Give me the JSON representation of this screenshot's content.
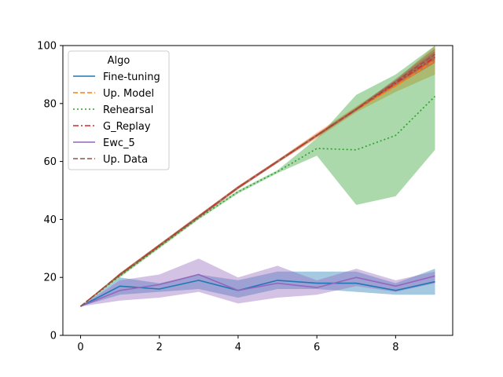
{
  "chart_data": {
    "type": "line",
    "title": "",
    "xlabel": "",
    "ylabel": "",
    "xlim": [
      -0.45,
      9.45
    ],
    "ylim": [
      0,
      100
    ],
    "x": [
      0,
      1,
      2,
      3,
      4,
      5,
      6,
      7,
      8,
      9
    ],
    "xticks": [
      0,
      2,
      4,
      6,
      8
    ],
    "yticks": [
      0,
      20,
      40,
      60,
      80,
      100
    ],
    "grid": false,
    "legend": {
      "title": "Algo",
      "placement": "top-left"
    },
    "series": [
      {
        "name": "Fine-tuning",
        "color": "#1f77b4",
        "dash": "solid",
        "values": [
          10,
          17,
          16,
          19,
          15.5,
          19,
          18,
          18,
          15.5,
          18.5
        ],
        "band_low": [
          10,
          14,
          15,
          16,
          13,
          16,
          16,
          15,
          14,
          14
        ],
        "band_high": [
          10,
          20,
          18,
          21,
          19,
          22,
          22,
          22,
          18,
          23
        ]
      },
      {
        "name": "Up. Model",
        "color": "#ff7f0e",
        "dash": "dashed",
        "values": [
          10,
          21,
          31,
          41,
          51,
          60,
          69,
          78,
          86,
          95
        ],
        "band_low": [
          10,
          20.5,
          30.5,
          40.5,
          50.5,
          59.5,
          68,
          77,
          84,
          90
        ],
        "band_high": [
          10,
          21.5,
          31.5,
          41.5,
          51.5,
          60.5,
          70,
          79,
          88,
          100
        ]
      },
      {
        "name": "Rehearsal",
        "color": "#2ca02c",
        "dash": "dotted",
        "values": [
          10,
          20.5,
          30.5,
          40.5,
          49.5,
          56.5,
          64.5,
          64,
          69,
          82.5
        ],
        "band_low": [
          10,
          20,
          30,
          40,
          49,
          56,
          62,
          45,
          48,
          64
        ],
        "band_high": [
          10,
          21,
          31,
          41,
          50,
          57,
          68,
          83,
          90,
          100
        ]
      },
      {
        "name": "G_Replay",
        "color": "#d62728",
        "dash": "dashdot",
        "values": [
          10,
          21,
          31,
          41,
          51,
          60,
          69,
          78,
          87,
          96
        ],
        "band_low": [
          10,
          20.5,
          30.5,
          40.5,
          50.5,
          59.5,
          68.5,
          77.5,
          86,
          94
        ],
        "band_high": [
          10,
          21.5,
          31.5,
          41.5,
          51.5,
          60.5,
          69.5,
          78.5,
          88,
          98
        ]
      },
      {
        "name": "Ewc_5",
        "color": "#9467bd",
        "dash": "solid",
        "values": [
          10,
          15.5,
          17.5,
          21,
          15.5,
          18,
          16.5,
          20,
          17,
          20.5
        ],
        "band_low": [
          10,
          12,
          13,
          15,
          11,
          13,
          14,
          17,
          15,
          18
        ],
        "band_high": [
          10,
          19,
          21,
          26.5,
          20,
          24,
          19,
          23,
          19,
          22
        ]
      },
      {
        "name": "Up. Data",
        "color": "#8c564b",
        "dash": "dashed",
        "values": [
          10,
          21,
          31,
          41,
          51,
          60,
          69,
          78,
          87.5,
          97
        ],
        "band_low": [
          10,
          20.5,
          30.5,
          40.5,
          50.5,
          59.5,
          68.5,
          77.5,
          86.5,
          95
        ],
        "band_high": [
          10,
          21.5,
          31.5,
          41.5,
          51.5,
          60.5,
          69.5,
          78.5,
          88.5,
          99
        ]
      }
    ]
  }
}
